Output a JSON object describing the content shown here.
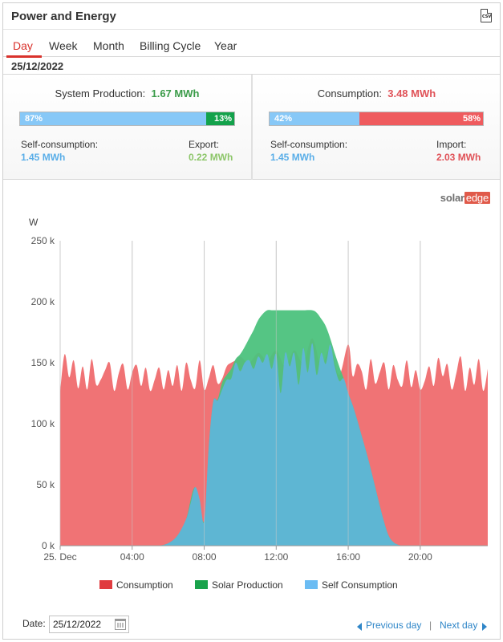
{
  "widget": {
    "title": "Power and Energy",
    "csv_icon_text": "CSV"
  },
  "tabs": [
    {
      "label": "Day",
      "active": true
    },
    {
      "label": "Week",
      "active": false
    },
    {
      "label": "Month",
      "active": false
    },
    {
      "label": "Billing Cycle",
      "active": false
    },
    {
      "label": "Year",
      "active": false
    }
  ],
  "selected_date": "25/12/2022",
  "production": {
    "title": "System Production:",
    "value": "1.67 MWh",
    "self_pct_label": "87%",
    "self_pct": 87,
    "export_pct_label": "13%",
    "export_pct": 13,
    "self_label": "Self-consumption:",
    "self_value": "1.45 MWh",
    "export_label": "Export:",
    "export_value": "0.22 MWh"
  },
  "consumption": {
    "title": "Consumption:",
    "value": "3.48 MWh",
    "self_pct_label": "42%",
    "self_pct": 42,
    "import_pct_label": "58%",
    "import_pct": 58,
    "self_label": "Self-consumption:",
    "self_value": "1.45 MWh",
    "import_label": "Import:",
    "import_value": "2.03 MWh"
  },
  "logo": {
    "part1": "solar",
    "part2": "edge"
  },
  "colors": {
    "consumption": "#ef6b6e",
    "solar_production": "#4cc27d",
    "self_consumption": "#5fb5d8",
    "accent": "#d9322c",
    "link": "#2f86c8"
  },
  "chart_data": {
    "type": "area",
    "ylabel": "W",
    "y_ticks": [
      "0 k",
      "50 k",
      "100 k",
      "150 k",
      "200 k",
      "250 k"
    ],
    "ylim": [
      0,
      250000
    ],
    "x_ticks": [
      "25. Dec",
      "04:00",
      "08:00",
      "12:00",
      "16:00",
      "20:00"
    ],
    "x_tick_hours": [
      0,
      4,
      8,
      12,
      16,
      20
    ],
    "xlim_hours": [
      0,
      23.75
    ],
    "grid": "vertical at x ticks",
    "legend_position": "bottom",
    "series": [
      {
        "name": "Consumption",
        "x_hours": [
          0,
          0.25,
          0.5,
          0.75,
          1,
          1.25,
          1.5,
          1.75,
          2,
          2.25,
          2.5,
          2.75,
          3,
          3.25,
          3.5,
          3.75,
          4,
          4.25,
          4.5,
          4.75,
          5,
          5.25,
          5.5,
          5.75,
          6,
          6.25,
          6.5,
          6.75,
          7,
          7.25,
          7.5,
          7.75,
          8,
          8.25,
          8.5,
          8.75,
          9,
          9.25,
          9.5,
          9.75,
          10,
          10.5,
          11,
          11.5,
          12,
          12.5,
          13,
          13.5,
          14,
          14.5,
          15,
          15.5,
          16,
          16.25,
          16.5,
          16.75,
          17,
          17.25,
          17.5,
          17.75,
          18,
          18.25,
          18.5,
          18.75,
          19,
          19.25,
          19.5,
          19.75,
          20,
          20.25,
          20.5,
          20.75,
          21,
          21.25,
          21.5,
          21.75,
          22,
          22.25,
          22.5,
          22.75,
          23,
          23.25,
          23.5,
          23.75
        ],
        "values": [
          126000,
          157000,
          138000,
          152000,
          129000,
          147000,
          128000,
          153000,
          132000,
          136000,
          144000,
          150000,
          127000,
          141000,
          149000,
          128000,
          142000,
          148000,
          131000,
          146000,
          127000,
          136000,
          146000,
          128000,
          144000,
          131000,
          148000,
          127000,
          150000,
          136000,
          129000,
          152000,
          128000,
          137000,
          148000,
          133000,
          137000,
          147000,
          150000,
          152000,
          155000,
          150000,
          158000,
          152000,
          160000,
          147000,
          160000,
          150000,
          170000,
          148000,
          162000,
          140000,
          165000,
          139000,
          149000,
          143000,
          128000,
          153000,
          133000,
          142000,
          150000,
          128000,
          148000,
          136000,
          131000,
          152000,
          130000,
          144000,
          128000,
          135000,
          147000,
          131000,
          154000,
          139000,
          149000,
          128000,
          141000,
          155000,
          127000,
          146000,
          132000,
          153000,
          127000,
          145000
        ]
      },
      {
        "name": "Solar Production",
        "x_hours": [
          5.5,
          6,
          6.5,
          7,
          7.5,
          8,
          8.25,
          8.5,
          8.75,
          9,
          9.25,
          9.5,
          9.75,
          10,
          10.25,
          10.5,
          10.75,
          11,
          11.25,
          11.5,
          11.75,
          12,
          12.5,
          13,
          13.5,
          14,
          14.25,
          14.5,
          14.75,
          15,
          15.25,
          15.5,
          15.75,
          16,
          16.25,
          16.5,
          16.75,
          17,
          17.25,
          17.5,
          17.75,
          18,
          18.25,
          18.5,
          18.75,
          19
        ],
        "values": [
          0,
          2000,
          8000,
          22000,
          48000,
          20000,
          80000,
          118000,
          120000,
          134000,
          140000,
          145000,
          153000,
          157000,
          163000,
          170000,
          177000,
          185000,
          190000,
          193000,
          193000,
          193000,
          193000,
          193000,
          193000,
          193000,
          191000,
          186000,
          180000,
          170000,
          158000,
          147000,
          137000,
          125000,
          115000,
          103000,
          90000,
          77000,
          63000,
          48000,
          33000,
          19000,
          8000,
          3000,
          800,
          0
        ]
      },
      {
        "name": "Self Consumption",
        "x_hours": [
          5.5,
          6,
          6.5,
          7,
          7.25,
          7.5,
          7.75,
          8,
          8.25,
          8.5,
          8.75,
          9,
          9.25,
          9.5,
          9.75,
          10,
          10.25,
          10.5,
          10.75,
          11,
          11.25,
          11.5,
          11.75,
          12,
          12.25,
          12.5,
          12.75,
          13,
          13.25,
          13.5,
          13.75,
          14,
          14.25,
          14.5,
          14.75,
          15,
          15.25,
          15.5,
          15.75,
          16,
          16.25,
          16.5,
          16.75,
          17,
          17.25,
          17.5,
          17.75,
          18,
          18.25,
          18.5,
          18.75,
          19
        ],
        "values": [
          0,
          2000,
          8000,
          22000,
          35000,
          48000,
          38000,
          20000,
          80000,
          118000,
          119000,
          128000,
          136000,
          137000,
          150000,
          143000,
          150000,
          152000,
          145000,
          155000,
          150000,
          157000,
          145000,
          157000,
          125000,
          158000,
          147000,
          158000,
          132000,
          162000,
          142000,
          166000,
          140000,
          158000,
          149000,
          165000,
          147000,
          135000,
          137000,
          125000,
          115000,
          103000,
          90000,
          77000,
          63000,
          48000,
          33000,
          19000,
          8000,
          3000,
          800,
          0
        ]
      }
    ]
  },
  "legend": [
    {
      "label": "Consumption",
      "color": "#e03b3f"
    },
    {
      "label": "Solar Production",
      "color": "#19a24b"
    },
    {
      "label": "Self Consumption",
      "color": "#6bbcf3"
    }
  ],
  "footer": {
    "date_label": "Date:",
    "date_value": "25/12/2022",
    "prev_label": "Previous day",
    "separator": "|",
    "next_label": "Next day"
  }
}
